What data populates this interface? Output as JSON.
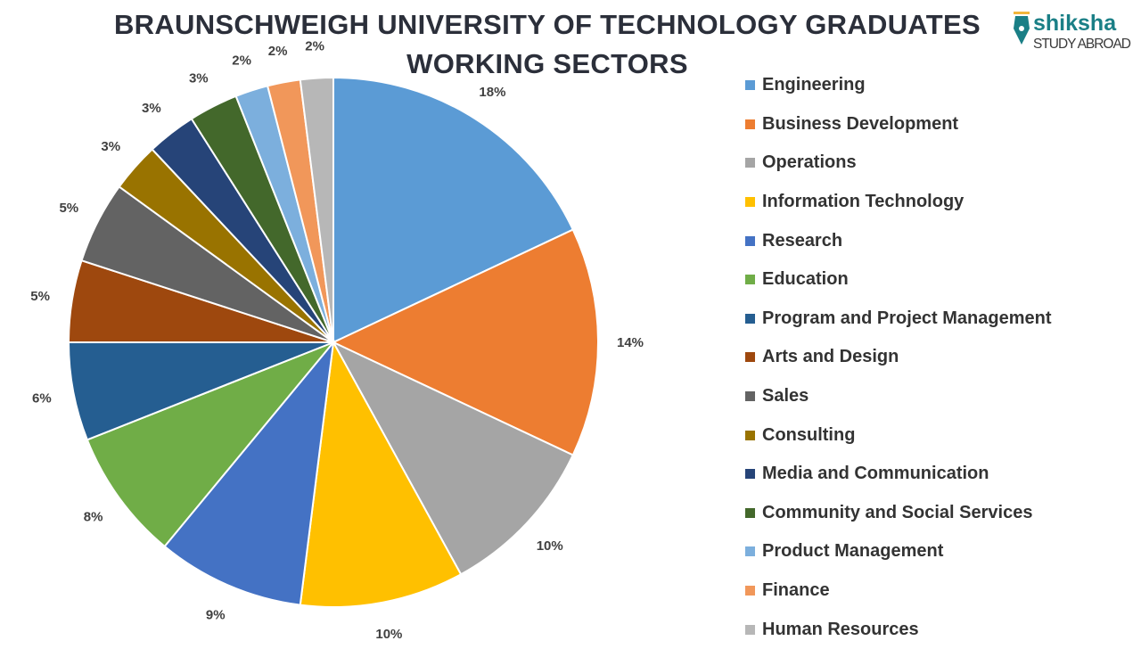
{
  "chart_data": {
    "type": "pie",
    "title": "BRAUNSCHWEIGH UNIVERSITY OF TECHNOLOGY GRADUATES WORKING SECTORS",
    "title_lines": [
      "BRAUNSCHWEIGH UNIVERSITY OF TECHNOLOGY GRADUATES",
      "WORKING SECTORS"
    ],
    "categories": [
      "Engineering",
      "Business Development",
      "Operations",
      "Information Technology",
      "Research",
      "Education",
      "Program and Project Management",
      "Arts and Design",
      "Sales",
      "Consulting",
      "Media and Communication",
      "Community and Social Services",
      "Product Management",
      "Finance",
      "Human Resources"
    ],
    "values": [
      18,
      14,
      10,
      10,
      9,
      8,
      6,
      5,
      5,
      3,
      3,
      3,
      2,
      2,
      2
    ],
    "labels": [
      "18%",
      "14%",
      "10%",
      "10%",
      "9%",
      "8%",
      "6%",
      "5%",
      "5%",
      "3%",
      "3%",
      "3%",
      "2%",
      "2%",
      "2%"
    ],
    "colors": [
      "#5b9bd5",
      "#ed7d31",
      "#a5a5a5",
      "#ffc000",
      "#4472c4",
      "#70ad47",
      "#255e91",
      "#9e480e",
      "#636363",
      "#997300",
      "#264478",
      "#43682b",
      "#7cafdd",
      "#f1975a",
      "#b7b7b7"
    ],
    "start_angle": "12 o'clock",
    "direction": "clockwise",
    "legend_position": "right"
  },
  "logo": {
    "brand": "shiksha",
    "tagline": "STUDY ABROAD"
  }
}
